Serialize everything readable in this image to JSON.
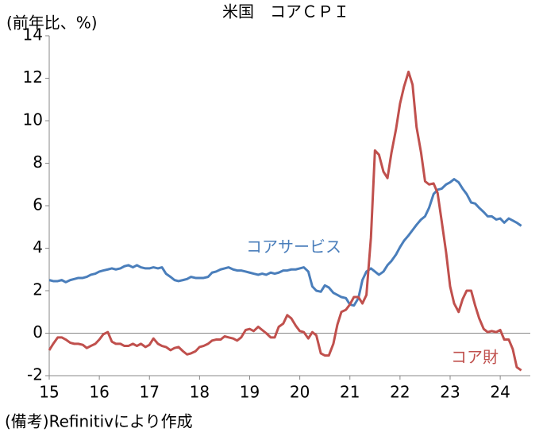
{
  "chart_data": {
    "type": "line",
    "title": "米国　コアＣＰＩ",
    "y_label": "(前年比、%)",
    "footnote": "(備考)Refinitivにより作成",
    "xlim": [
      15,
      24.6
    ],
    "xticks": [
      15,
      16,
      17,
      18,
      19,
      20,
      21,
      22,
      23,
      24
    ],
    "ylim": [
      -2,
      14
    ],
    "yticks": [
      -2,
      0,
      2,
      4,
      6,
      8,
      10,
      12,
      14
    ],
    "grid": false,
    "x": [
      15,
      15.08,
      15.17,
      15.25,
      15.33,
      15.42,
      15.5,
      15.58,
      15.67,
      15.75,
      15.83,
      15.92,
      16,
      16.08,
      16.17,
      16.25,
      16.33,
      16.42,
      16.5,
      16.58,
      16.67,
      16.75,
      16.83,
      16.92,
      17,
      17.08,
      17.17,
      17.25,
      17.33,
      17.42,
      17.5,
      17.58,
      17.67,
      17.75,
      17.83,
      17.92,
      18,
      18.08,
      18.17,
      18.25,
      18.33,
      18.42,
      18.5,
      18.58,
      18.67,
      18.75,
      18.83,
      18.92,
      19,
      19.08,
      19.17,
      19.25,
      19.33,
      19.42,
      19.5,
      19.58,
      19.67,
      19.75,
      19.83,
      19.92,
      20,
      20.08,
      20.17,
      20.25,
      20.33,
      20.42,
      20.5,
      20.58,
      20.67,
      20.75,
      20.83,
      20.92,
      21,
      21.08,
      21.17,
      21.25,
      21.33,
      21.42,
      21.5,
      21.58,
      21.67,
      21.75,
      21.83,
      21.92,
      22,
      22.08,
      22.17,
      22.25,
      22.33,
      22.42,
      22.5,
      22.58,
      22.67,
      22.75,
      22.83,
      22.92,
      23,
      23.08,
      23.17,
      23.25,
      23.33,
      23.42,
      23.5,
      23.58,
      23.67,
      23.75,
      23.83,
      23.92,
      24,
      24.08,
      24.17,
      24.25,
      24.33,
      24.42
    ],
    "series": [
      {
        "name": "コアサービス",
        "color": "#4a7ebb",
        "values": [
          2.5,
          2.45,
          2.45,
          2.5,
          2.4,
          2.5,
          2.55,
          2.6,
          2.6,
          2.65,
          2.75,
          2.8,
          2.9,
          2.95,
          3.0,
          3.05,
          3.0,
          3.05,
          3.15,
          3.2,
          3.1,
          3.2,
          3.1,
          3.05,
          3.05,
          3.1,
          3.05,
          3.1,
          2.8,
          2.65,
          2.5,
          2.45,
          2.5,
          2.55,
          2.65,
          2.6,
          2.6,
          2.6,
          2.65,
          2.85,
          2.9,
          3.0,
          3.05,
          3.1,
          3.0,
          2.95,
          2.95,
          2.9,
          2.85,
          2.8,
          2.75,
          2.8,
          2.75,
          2.85,
          2.8,
          2.85,
          2.95,
          2.95,
          3.0,
          3.0,
          3.05,
          3.1,
          2.9,
          2.2,
          2.0,
          1.95,
          2.25,
          2.15,
          1.9,
          1.8,
          1.7,
          1.65,
          1.35,
          1.3,
          1.65,
          2.5,
          2.9,
          3.05,
          2.9,
          2.75,
          2.9,
          3.2,
          3.4,
          3.7,
          4.05,
          4.35,
          4.6,
          4.85,
          5.1,
          5.35,
          5.5,
          5.9,
          6.55,
          6.75,
          6.8,
          7.0,
          7.1,
          7.25,
          7.1,
          6.8,
          6.55,
          6.15,
          6.1,
          5.9,
          5.7,
          5.5,
          5.5,
          5.35,
          5.4,
          5.2,
          5.4,
          5.3,
          5.2,
          5.05
        ]
      },
      {
        "name": "コア財",
        "color": "#c0504d",
        "values": [
          -0.8,
          -0.5,
          -0.2,
          -0.2,
          -0.3,
          -0.45,
          -0.5,
          -0.5,
          -0.55,
          -0.7,
          -0.6,
          -0.5,
          -0.3,
          -0.05,
          0.05,
          -0.4,
          -0.5,
          -0.5,
          -0.6,
          -0.6,
          -0.5,
          -0.6,
          -0.5,
          -0.65,
          -0.55,
          -0.25,
          -0.5,
          -0.6,
          -0.65,
          -0.8,
          -0.7,
          -0.65,
          -0.85,
          -1.0,
          -0.95,
          -0.85,
          -0.65,
          -0.6,
          -0.5,
          -0.35,
          -0.3,
          -0.3,
          -0.15,
          -0.2,
          -0.25,
          -0.35,
          -0.2,
          0.15,
          0.2,
          0.1,
          0.3,
          0.15,
          0.0,
          -0.2,
          -0.2,
          0.3,
          0.45,
          0.85,
          0.7,
          0.35,
          0.1,
          0.05,
          -0.25,
          0.05,
          -0.1,
          -0.95,
          -1.05,
          -1.05,
          -0.5,
          0.4,
          1.0,
          1.1,
          1.35,
          1.7,
          1.7,
          1.4,
          1.8,
          4.5,
          8.6,
          8.4,
          7.6,
          7.3,
          8.5,
          9.6,
          10.8,
          11.6,
          12.3,
          11.7,
          9.7,
          8.5,
          7.15,
          7.0,
          7.05,
          6.6,
          5.3,
          3.8,
          2.2,
          1.4,
          1.0,
          1.6,
          2.0,
          2.0,
          1.3,
          0.7,
          0.2,
          0.05,
          0.1,
          0.05,
          0.15,
          -0.3,
          -0.3,
          -0.75,
          -1.6,
          -1.75
        ]
      }
    ]
  }
}
